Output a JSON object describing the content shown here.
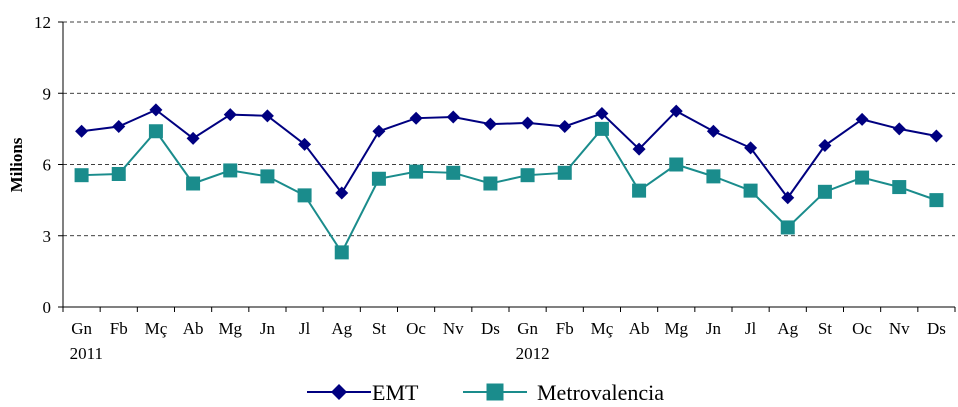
{
  "chart_data": {
    "type": "line",
    "ylabel": "Milions",
    "ylim": [
      0,
      12
    ],
    "yticks": [
      "0",
      "3",
      "6",
      "9",
      "12"
    ],
    "grid": "horizontal dashed",
    "legend_position": "bottom",
    "categories": [
      "Gn",
      "Fb",
      "Mç",
      "Ab",
      "Mg",
      "Jn",
      "Jl",
      "Ag",
      "St",
      "Oc",
      "Nv",
      "Ds",
      "Gn",
      "Fb",
      "Mç",
      "Ab",
      "Mg",
      "Jn",
      "Jl",
      "Ag",
      "St",
      "Oc",
      "Nv",
      "Ds"
    ],
    "year_labels": [
      {
        "index": 0,
        "label": "2011"
      },
      {
        "index": 12,
        "label": "2012"
      }
    ],
    "series": [
      {
        "name": "EMT",
        "color": "#000080",
        "marker": "diamond",
        "values": [
          7.4,
          7.6,
          8.3,
          7.1,
          8.1,
          8.05,
          6.85,
          4.8,
          7.4,
          7.95,
          8.0,
          7.7,
          7.75,
          7.6,
          8.15,
          6.65,
          8.25,
          7.4,
          6.7,
          4.6,
          6.8,
          7.9,
          7.5,
          7.2
        ]
      },
      {
        "name": "Metrovalencia",
        "color": "#1a8c8c",
        "marker": "square",
        "values": [
          5.55,
          5.6,
          7.4,
          5.2,
          5.75,
          5.5,
          4.7,
          2.3,
          5.4,
          5.7,
          5.65,
          5.2,
          5.55,
          5.65,
          7.5,
          4.9,
          6.0,
          5.5,
          4.9,
          3.35,
          4.85,
          5.45,
          5.05,
          4.5
        ]
      }
    ]
  }
}
